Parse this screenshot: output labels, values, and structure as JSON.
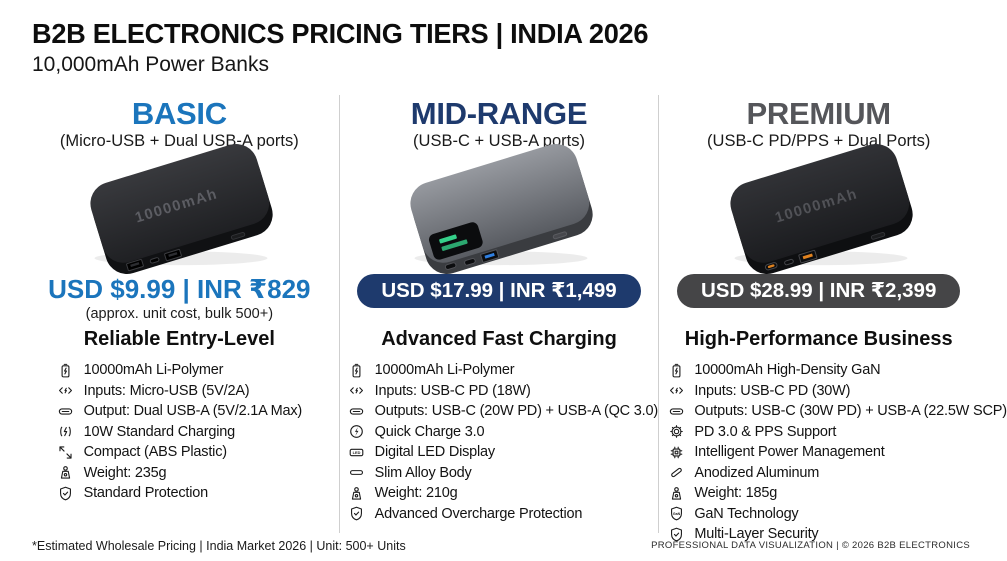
{
  "header": {
    "title": "B2B ELECTRONICS PRICING TIERS | INDIA 2026",
    "subtitle": "10,000mAh Power Banks"
  },
  "colors": {
    "basic_accent": "#1b75bc",
    "midrange_accent": "#1e3a6d",
    "premium_name": "#55565a",
    "premium_pill_bg": "#454547",
    "divider": "#cfcfcf",
    "mid_display_green": "#35d08a",
    "mid_usb_blue": "#2f7fe0",
    "premium_port_orange": "#e0821f"
  },
  "tiers": [
    {
      "id": "basic",
      "name": "BASIC",
      "ports_subtitle": "(Micro-USB + Dual USB-A ports)",
      "device_label": "10000mAh",
      "price": "USD $9.99 | INR ₹829",
      "price_style": "text",
      "price_caption": "(approx. unit cost, bulk 500+)",
      "heading": "Reliable Entry-Level",
      "accent": "#1b75bc",
      "pill_bg": null,
      "features": [
        {
          "icon": "battery-icon",
          "text": "10000mAh Li-Polymer"
        },
        {
          "icon": "input-arrows-icon",
          "text": "Inputs: Micro-USB (5V/2A)"
        },
        {
          "icon": "usb-port-icon",
          "text": "Output: Dual USB-A (5V/2.1A Max)"
        },
        {
          "icon": "charging-bolt-icon",
          "text": "10W Standard Charging"
        },
        {
          "icon": "compact-size-icon",
          "text": "Compact (ABS Plastic)"
        },
        {
          "icon": "weight-scale-icon",
          "text": "Weight: 235g"
        },
        {
          "icon": "shield-check-icon",
          "text": "Standard Protection"
        }
      ]
    },
    {
      "id": "midrange",
      "name": "MID-RANGE",
      "ports_subtitle": "(USB-C + USB-A ports)",
      "price": "USD $17.99 | INR ₹1,499",
      "price_style": "pill",
      "heading": "Advanced Fast Charging",
      "accent": "#1e3a6d",
      "pill_bg": "#1e3a6d",
      "features": [
        {
          "icon": "battery-icon",
          "text": "10000mAh Li-Polymer"
        },
        {
          "icon": "input-arrows-icon",
          "text": "Inputs: USB-C PD (18W)"
        },
        {
          "icon": "usb-port-icon",
          "text": "Outputs: USB-C (20W PD) + USB-A (QC 3.0)"
        },
        {
          "icon": "quick-charge-icon",
          "text": "Quick Charge 3.0"
        },
        {
          "icon": "led-display-icon",
          "text": "Digital LED Display"
        },
        {
          "icon": "slim-body-icon",
          "text": "Slim Alloy Body"
        },
        {
          "icon": "weight-scale-icon",
          "text": "Weight: 210g"
        },
        {
          "icon": "shield-check-icon",
          "text": "Advanced Overcharge Protection"
        }
      ]
    },
    {
      "id": "premium",
      "name": "PREMIUM",
      "ports_subtitle": "(USB-C PD/PPS + Dual Ports)",
      "device_label": "10000mAh",
      "price": "USD $28.99 | INR ₹2,399",
      "price_style": "pill",
      "heading": "High-Performance Business",
      "accent": "#55565a",
      "pill_bg": "#454547",
      "features": [
        {
          "icon": "battery-icon",
          "text": "10000mAh High-Density GaN"
        },
        {
          "icon": "input-arrows-icon",
          "text": "Inputs: USB-C PD (30W)"
        },
        {
          "icon": "usb-port-icon",
          "text": "Outputs: USB-C (30W PD) + USB-A (22.5W SCP)"
        },
        {
          "icon": "gear-icon",
          "text": "PD 3.0 & PPS Support"
        },
        {
          "icon": "chip-icon",
          "text": "Intelligent Power Management"
        },
        {
          "icon": "aluminum-icon",
          "text": "Anodized Aluminum"
        },
        {
          "icon": "weight-scale-icon",
          "text": "Weight: 185g"
        },
        {
          "icon": "shield-gan-icon",
          "text": "GaN Technology"
        },
        {
          "icon": "shield-check-icon",
          "text": "Multi-Layer Security"
        }
      ]
    }
  ],
  "footer": {
    "note": "*Estimated Wholesale Pricing | India Market 2026 | Unit: 500+ Units",
    "credit": "PROFESSIONAL DATA VISUALIZATION | © 2026 B2B ELECTRONICS"
  }
}
